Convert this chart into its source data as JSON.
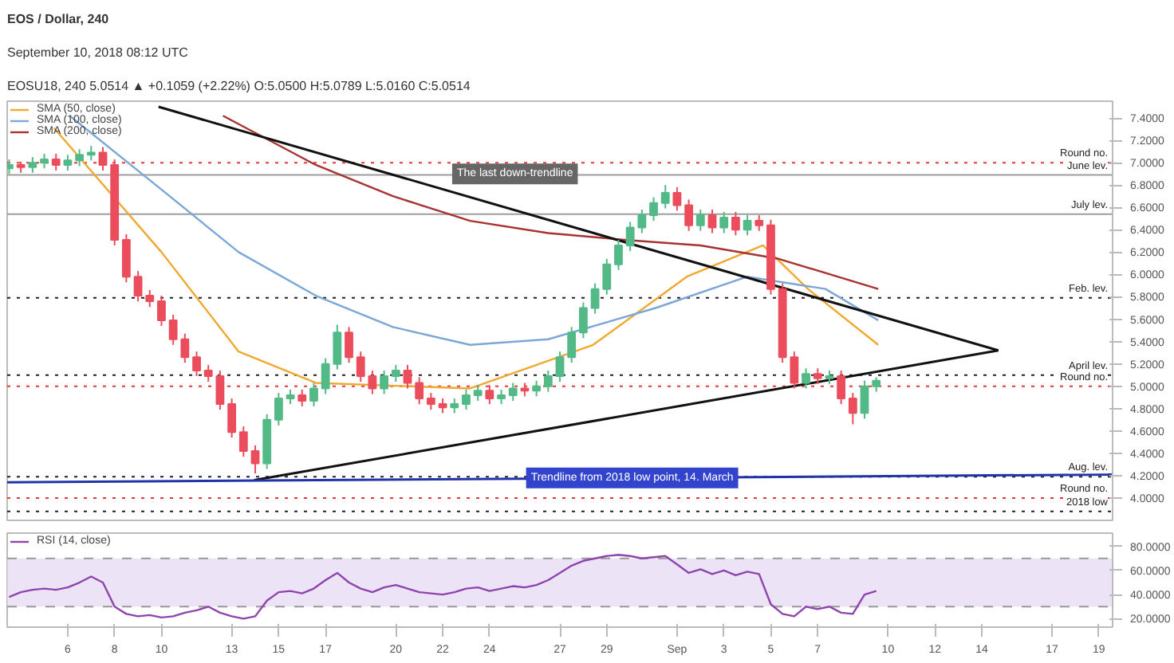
{
  "chart_data": [
    {
      "type": "candlestick",
      "title": "EOS / Dollar, 240",
      "subtitle": "September 10, 2018 08:12 UTC",
      "annotations": [
        "EOSU18, 240 5.0514 ▲ +0.1059 (+2.22%) O:5.0500 H:5.0789 L:5.0160 C:5.0514",
        {
          "text": "The last down-trendline",
          "x": "2018-08-25T02:00",
          "y": 6.9
        },
        {
          "text": "Trendline from 2018 low point, 14. March",
          "x": "2018-08-30T02:00",
          "y": 4.18
        }
      ],
      "xlim": [
        "2018-08-03T10:00",
        "2018-09-19T14:00"
      ],
      "xticks": [
        "2018-08-06",
        "2018-08-08",
        "2018-08-10",
        "2018-08-13",
        "2018-08-15",
        "2018-08-17",
        "2018-08-20",
        "2018-08-22",
        "2018-08-24",
        "2018-08-27",
        "2018-08-29",
        "2018-09-01",
        "2018-09-03",
        "2018-09-05",
        "2018-09-07",
        "2018-09-10",
        "2018-09-12",
        "2018-09-14",
        "2018-09-17",
        "2018-09-19"
      ],
      "ylim": [
        3.8,
        7.55
      ],
      "yticks": [
        {
          "value": 4.0,
          "label": "4.0000"
        },
        {
          "value": 4.2,
          "label": "4.2000"
        },
        {
          "value": 4.4,
          "label": "4.4000"
        },
        {
          "value": 4.6,
          "label": "4.6000"
        },
        {
          "value": 4.8,
          "label": "4.8000"
        },
        {
          "value": 5.0,
          "label": "5.0000"
        },
        {
          "value": 5.2,
          "label": "5.2000"
        },
        {
          "value": 5.4,
          "label": "5.4000"
        },
        {
          "value": 5.6,
          "label": "5.6000"
        },
        {
          "value": 5.8,
          "label": "5.8000"
        },
        {
          "value": 6.0,
          "label": "6.0000"
        },
        {
          "value": 6.2,
          "label": "6.2000"
        },
        {
          "value": 6.4,
          "label": "6.4000"
        },
        {
          "value": 6.6,
          "label": "6.6000"
        },
        {
          "value": 6.8,
          "label": "6.8000"
        },
        {
          "value": 7.0,
          "label": "7.0000"
        },
        {
          "value": 7.2,
          "label": "7.2000"
        },
        {
          "value": 7.4,
          "label": "7.4000"
        }
      ],
      "tick_labels": "y",
      "legend": "top left",
      "ref_lines": [
        {
          "axis": "y",
          "value": 7.0,
          "label": "Round no.",
          "color": "#e53935",
          "line_style": "dotted"
        },
        {
          "axis": "y",
          "value": 6.89,
          "label": "June lev.",
          "color": "#9e9e9e",
          "line_style": "solid"
        },
        {
          "axis": "y",
          "value": 6.54,
          "label": "July lev.",
          "color": "#9e9e9e",
          "line_style": "solid"
        },
        {
          "axis": "y",
          "value": 5.79,
          "label": "Feb. lev.",
          "color": "#222222",
          "line_style": "dotted"
        },
        {
          "axis": "y",
          "value": 5.1,
          "label": "April lev.",
          "color": "#222222",
          "line_style": "dotted"
        },
        {
          "axis": "y",
          "value": 5.0,
          "label": "Round no.",
          "color": "#e53935",
          "line_style": "dotted"
        },
        {
          "axis": "y",
          "value": 4.19,
          "label": "Aug. lev.",
          "color": "#222222",
          "line_style": "dotted"
        },
        {
          "axis": "y",
          "value": 4.0,
          "label": "Round no.",
          "color": "#e53935",
          "line_style": "dotted"
        },
        {
          "axis": "y",
          "value": 3.88,
          "label": "2018 low",
          "color": "#222222",
          "line_style": "dotted"
        }
      ],
      "series": [
        {
          "type": "line",
          "name": "SMA (50, close)",
          "color": "#f0a830",
          "x": [
            "2018-08-05T10:00",
            "2018-08-10T00:00",
            "2018-08-13T07:00",
            "2018-08-16T14:00",
            "2018-08-23T04:00",
            "2018-08-28T10:00",
            "2018-09-01T10:00",
            "2018-09-04T16:00",
            "2018-09-06T14:00",
            "2018-09-09T14:00"
          ],
          "values": [
            7.31,
            6.2,
            5.31,
            5.03,
            4.98,
            5.37,
            5.98,
            6.26,
            5.87,
            5.37
          ]
        },
        {
          "type": "line",
          "name": "SMA (100, close)",
          "color": "#7aa7d8",
          "x": [
            "2018-08-06T02:00",
            "2018-08-10T00:00",
            "2018-08-13T07:00",
            "2018-08-16T14:00",
            "2018-08-19T21:00",
            "2018-08-23T04:00",
            "2018-08-26T12:00",
            "2018-08-31T02:00",
            "2018-09-04T00:00",
            "2018-09-07T08:00",
            "2018-09-09T14:00"
          ],
          "values": [
            7.42,
            6.76,
            6.2,
            5.81,
            5.53,
            5.37,
            5.42,
            5.7,
            5.98,
            5.87,
            5.59
          ]
        },
        {
          "type": "line",
          "name": "SMA (200, close)",
          "color": "#a83232",
          "x": [
            "2018-08-12T15:00",
            "2018-08-16T14:00",
            "2018-08-19T21:00",
            "2018-08-23T04:00",
            "2018-08-26T12:00",
            "2018-08-29T18:00",
            "2018-09-02T00:00",
            "2018-09-05T08:00",
            "2018-09-09T14:00"
          ],
          "values": [
            7.42,
            6.98,
            6.7,
            6.48,
            6.37,
            6.31,
            6.26,
            6.14,
            5.87
          ]
        },
        {
          "type": "line",
          "color": "#111111",
          "x": [
            "2018-08-09T21:00",
            "2018-09-14T17:00"
          ],
          "values": [
            7.5,
            5.32
          ]
        },
        {
          "type": "line",
          "color": "#111111",
          "x": [
            "2018-08-13T23:00",
            "2018-09-14T17:00"
          ],
          "values": [
            4.16,
            5.32
          ]
        },
        {
          "type": "line",
          "color": "#2233aa",
          "x": [
            "2018-08-03T10:00",
            "2018-09-19T14:00"
          ],
          "values": [
            4.14,
            4.21
          ]
        },
        {
          "type": "candlestick",
          "x": [
            "2018-08-03T12:00",
            "2018-08-04T00:00",
            "2018-08-04T12:00",
            "2018-08-05T00:00",
            "2018-08-05T12:00",
            "2018-08-06T00:00",
            "2018-08-06T12:00",
            "2018-08-07T00:00",
            "2018-08-07T12:00",
            "2018-08-08T00:00",
            "2018-08-08T12:00",
            "2018-08-09T00:00",
            "2018-08-09T12:00",
            "2018-08-10T00:00",
            "2018-08-10T12:00",
            "2018-08-11T00:00",
            "2018-08-11T12:00",
            "2018-08-12T00:00",
            "2018-08-12T12:00",
            "2018-08-13T00:00",
            "2018-08-13T12:00",
            "2018-08-14T00:00",
            "2018-08-14T12:00",
            "2018-08-15T00:00",
            "2018-08-15T12:00",
            "2018-08-16T00:00",
            "2018-08-16T12:00",
            "2018-08-17T00:00",
            "2018-08-17T12:00",
            "2018-08-18T00:00",
            "2018-08-18T12:00",
            "2018-08-19T00:00",
            "2018-08-19T12:00",
            "2018-08-20T00:00",
            "2018-08-20T12:00",
            "2018-08-21T00:00",
            "2018-08-21T12:00",
            "2018-08-22T00:00",
            "2018-08-22T12:00",
            "2018-08-23T00:00",
            "2018-08-23T12:00",
            "2018-08-24T00:00",
            "2018-08-24T12:00",
            "2018-08-25T00:00",
            "2018-08-25T12:00",
            "2018-08-26T00:00",
            "2018-08-26T12:00",
            "2018-08-27T00:00",
            "2018-08-27T12:00",
            "2018-08-28T00:00",
            "2018-08-28T12:00",
            "2018-08-29T00:00",
            "2018-08-29T12:00",
            "2018-08-30T00:00",
            "2018-08-30T12:00",
            "2018-08-31T00:00",
            "2018-08-31T12:00",
            "2018-09-01T00:00",
            "2018-09-01T12:00",
            "2018-09-02T00:00",
            "2018-09-02T12:00",
            "2018-09-03T00:00",
            "2018-09-03T12:00",
            "2018-09-04T00:00",
            "2018-09-04T12:00",
            "2018-09-05T00:00",
            "2018-09-05T12:00",
            "2018-09-06T00:00",
            "2018-09-06T12:00",
            "2018-09-07T00:00",
            "2018-09-07T12:00",
            "2018-09-08T00:00",
            "2018-09-08T12:00",
            "2018-09-09T00:00",
            "2018-09-09T12:00"
          ],
          "ohlc": [
            [
              6.95,
              7.03,
              6.9,
              6.98
            ],
            [
              6.98,
              7.01,
              6.91,
              6.96
            ],
            [
              6.96,
              7.05,
              6.91,
              7.0
            ],
            [
              7.0,
              7.08,
              6.95,
              7.03
            ],
            [
              7.03,
              7.08,
              6.93,
              6.98
            ],
            [
              6.98,
              7.07,
              6.93,
              7.02
            ],
            [
              7.02,
              7.12,
              6.97,
              7.07
            ],
            [
              7.07,
              7.15,
              7.02,
              7.09
            ],
            [
              7.09,
              7.14,
              6.93,
              6.98
            ],
            [
              6.98,
              7.03,
              6.26,
              6.31
            ],
            [
              6.31,
              6.36,
              5.93,
              5.98
            ],
            [
              5.98,
              6.03,
              5.76,
              5.81
            ],
            [
              5.81,
              5.86,
              5.71,
              5.76
            ],
            [
              5.76,
              5.81,
              5.54,
              5.59
            ],
            [
              5.59,
              5.64,
              5.37,
              5.42
            ],
            [
              5.42,
              5.47,
              5.21,
              5.26
            ],
            [
              5.26,
              5.31,
              5.09,
              5.14
            ],
            [
              5.14,
              5.19,
              5.04,
              5.09
            ],
            [
              5.09,
              5.14,
              4.79,
              4.84
            ],
            [
              4.84,
              4.89,
              4.54,
              4.59
            ],
            [
              4.59,
              4.64,
              4.37,
              4.42
            ],
            [
              4.42,
              4.47,
              4.22,
              4.31
            ],
            [
              4.31,
              4.75,
              4.26,
              4.7
            ],
            [
              4.7,
              4.94,
              4.65,
              4.89
            ],
            [
              4.89,
              4.97,
              4.84,
              4.92
            ],
            [
              4.92,
              4.97,
              4.82,
              4.87
            ],
            [
              4.87,
              5.03,
              4.82,
              4.98
            ],
            [
              4.98,
              5.25,
              4.93,
              5.2
            ],
            [
              5.2,
              5.55,
              5.15,
              5.48
            ],
            [
              5.48,
              5.53,
              5.21,
              5.26
            ],
            [
              5.26,
              5.31,
              5.04,
              5.09
            ],
            [
              5.09,
              5.14,
              4.93,
              4.98
            ],
            [
              4.98,
              5.14,
              4.93,
              5.09
            ],
            [
              5.09,
              5.19,
              5.04,
              5.14
            ],
            [
              5.14,
              5.19,
              4.98,
              5.03
            ],
            [
              5.03,
              5.08,
              4.84,
              4.89
            ],
            [
              4.89,
              4.94,
              4.79,
              4.84
            ],
            [
              4.84,
              4.89,
              4.76,
              4.81
            ],
            [
              4.81,
              4.89,
              4.76,
              4.84
            ],
            [
              4.84,
              4.97,
              4.79,
              4.92
            ],
            [
              4.92,
              5.01,
              4.87,
              4.96
            ],
            [
              4.96,
              5.01,
              4.84,
              4.89
            ],
            [
              4.89,
              4.97,
              4.84,
              4.92
            ],
            [
              4.92,
              5.03,
              4.87,
              4.98
            ],
            [
              4.98,
              5.03,
              4.91,
              4.96
            ],
            [
              4.96,
              5.05,
              4.91,
              5.0
            ],
            [
              5.0,
              5.14,
              4.95,
              5.09
            ],
            [
              5.09,
              5.31,
              5.04,
              5.26
            ],
            [
              5.26,
              5.53,
              5.21,
              5.48
            ],
            [
              5.48,
              5.75,
              5.43,
              5.7
            ],
            [
              5.7,
              5.92,
              5.65,
              5.87
            ],
            [
              5.87,
              6.14,
              5.82,
              6.09
            ],
            [
              6.09,
              6.31,
              6.04,
              6.26
            ],
            [
              6.26,
              6.47,
              6.21,
              6.42
            ],
            [
              6.42,
              6.58,
              6.37,
              6.53
            ],
            [
              6.53,
              6.69,
              6.48,
              6.64
            ],
            [
              6.64,
              6.8,
              6.59,
              6.73
            ],
            [
              6.73,
              6.78,
              6.57,
              6.62
            ],
            [
              6.62,
              6.67,
              6.39,
              6.44
            ],
            [
              6.44,
              6.58,
              6.39,
              6.53
            ],
            [
              6.53,
              6.58,
              6.37,
              6.42
            ],
            [
              6.42,
              6.56,
              6.37,
              6.51
            ],
            [
              6.51,
              6.56,
              6.35,
              6.4
            ],
            [
              6.4,
              6.53,
              6.35,
              6.48
            ],
            [
              6.48,
              6.53,
              6.39,
              6.44
            ],
            [
              6.44,
              6.49,
              5.82,
              5.87
            ],
            [
              5.87,
              5.92,
              5.21,
              5.26
            ],
            [
              5.26,
              5.31,
              4.98,
              5.03
            ],
            [
              5.03,
              5.16,
              4.98,
              5.11
            ],
            [
              5.11,
              5.16,
              5.02,
              5.07
            ],
            [
              5.07,
              5.14,
              5.02,
              5.09
            ],
            [
              5.09,
              5.14,
              4.84,
              4.89
            ],
            [
              4.89,
              4.94,
              4.66,
              4.76
            ],
            [
              4.76,
              5.05,
              4.71,
              5.0
            ],
            [
              5.0,
              5.08,
              4.95,
              5.05
            ]
          ],
          "colors": [
            "#53b987",
            "#eb4d5c",
            "#53b987",
            "#53b987",
            "#eb4d5c",
            "#53b987",
            "#53b987",
            "#53b987",
            "#eb4d5c",
            "#eb4d5c",
            "#eb4d5c",
            "#eb4d5c",
            "#eb4d5c",
            "#eb4d5c",
            "#eb4d5c",
            "#eb4d5c",
            "#eb4d5c",
            "#eb4d5c",
            "#eb4d5c",
            "#eb4d5c",
            "#eb4d5c",
            "#eb4d5c",
            "#53b987",
            "#53b987",
            "#53b987",
            "#eb4d5c",
            "#53b987",
            "#53b987",
            "#53b987",
            "#eb4d5c",
            "#eb4d5c",
            "#eb4d5c",
            "#53b987",
            "#53b987",
            "#eb4d5c",
            "#eb4d5c",
            "#eb4d5c",
            "#eb4d5c",
            "#53b987",
            "#53b987",
            "#53b987",
            "#eb4d5c",
            "#53b987",
            "#53b987",
            "#eb4d5c",
            "#53b987",
            "#53b987",
            "#53b987",
            "#53b987",
            "#53b987",
            "#53b987",
            "#53b987",
            "#53b987",
            "#53b987",
            "#53b987",
            "#53b987",
            "#53b987",
            "#eb4d5c",
            "#eb4d5c",
            "#53b987",
            "#eb4d5c",
            "#53b987",
            "#eb4d5c",
            "#53b987",
            "#eb4d5c",
            "#eb4d5c",
            "#eb4d5c",
            "#eb4d5c",
            "#53b987",
            "#eb4d5c",
            "#53b987",
            "#eb4d5c",
            "#eb4d5c",
            "#53b987",
            "#53b987"
          ]
        }
      ]
    },
    {
      "type": "line",
      "legend": "top left",
      "xlim": [
        "2018-08-03T10:00",
        "2018-09-19T14:00"
      ],
      "xticks": [
        {
          "value": "2018-08-06",
          "label": "6"
        },
        {
          "value": "2018-08-08",
          "label": "8"
        },
        {
          "value": "2018-08-10",
          "label": "10"
        },
        {
          "value": "2018-08-13",
          "label": "13"
        },
        {
          "value": "2018-08-15",
          "label": "15"
        },
        {
          "value": "2018-08-17",
          "label": "17"
        },
        {
          "value": "2018-08-20",
          "label": "20"
        },
        {
          "value": "2018-08-22",
          "label": "22"
        },
        {
          "value": "2018-08-24",
          "label": "24"
        },
        {
          "value": "2018-08-27",
          "label": "27"
        },
        {
          "value": "2018-08-29",
          "label": "29"
        },
        {
          "value": "2018-09-01",
          "label": "Sep"
        },
        {
          "value": "2018-09-03",
          "label": "3"
        },
        {
          "value": "2018-09-05",
          "label": "5"
        },
        {
          "value": "2018-09-07",
          "label": "7"
        },
        {
          "value": "2018-09-10",
          "label": "10"
        },
        {
          "value": "2018-09-12",
          "label": "12"
        },
        {
          "value": "2018-09-14",
          "label": "14"
        },
        {
          "value": "2018-09-17",
          "label": "17"
        },
        {
          "value": "2018-09-19",
          "label": "19"
        }
      ],
      "ylim": [
        13,
        91
      ],
      "yticks": [
        {
          "value": 20,
          "label": "20.0000"
        },
        {
          "value": 40,
          "label": "40.0000"
        },
        {
          "value": 60,
          "label": "60.0000"
        },
        {
          "value": 80,
          "label": "80.0000"
        }
      ],
      "bands": [
        {
          "axis": "y",
          "from": 30,
          "to": 70,
          "color": "#e8dcf5"
        }
      ],
      "ref_lines": [
        {
          "axis": "y",
          "value": 70,
          "color": "#999999",
          "line_style": "dashed"
        },
        {
          "axis": "y",
          "value": 30,
          "color": "#999999",
          "line_style": "dashed"
        }
      ],
      "series": [
        {
          "name": "RSI (14, close)",
          "color": "#8e44ad",
          "x": [
            "2018-08-03T12:00",
            "2018-08-04T00:00",
            "2018-08-04T12:00",
            "2018-08-05T00:00",
            "2018-08-05T12:00",
            "2018-08-06T00:00",
            "2018-08-06T12:00",
            "2018-08-07T00:00",
            "2018-08-07T12:00",
            "2018-08-08T00:00",
            "2018-08-08T12:00",
            "2018-08-09T00:00",
            "2018-08-09T12:00",
            "2018-08-10T00:00",
            "2018-08-10T12:00",
            "2018-08-11T00:00",
            "2018-08-11T12:00",
            "2018-08-12T00:00",
            "2018-08-12T12:00",
            "2018-08-13T00:00",
            "2018-08-13T12:00",
            "2018-08-14T00:00",
            "2018-08-14T12:00",
            "2018-08-15T00:00",
            "2018-08-15T12:00",
            "2018-08-16T00:00",
            "2018-08-16T12:00",
            "2018-08-17T00:00",
            "2018-08-17T12:00",
            "2018-08-18T00:00",
            "2018-08-18T12:00",
            "2018-08-19T00:00",
            "2018-08-19T12:00",
            "2018-08-20T00:00",
            "2018-08-20T12:00",
            "2018-08-21T00:00",
            "2018-08-21T12:00",
            "2018-08-22T00:00",
            "2018-08-22T12:00",
            "2018-08-23T00:00",
            "2018-08-23T12:00",
            "2018-08-24T00:00",
            "2018-08-24T12:00",
            "2018-08-25T00:00",
            "2018-08-25T12:00",
            "2018-08-26T00:00",
            "2018-08-26T12:00",
            "2018-08-27T00:00",
            "2018-08-27T12:00",
            "2018-08-28T00:00",
            "2018-08-28T12:00",
            "2018-08-29T00:00",
            "2018-08-29T12:00",
            "2018-08-30T00:00",
            "2018-08-30T12:00",
            "2018-08-31T00:00",
            "2018-08-31T12:00",
            "2018-09-01T00:00",
            "2018-09-01T12:00",
            "2018-09-02T00:00",
            "2018-09-02T12:00",
            "2018-09-03T00:00",
            "2018-09-03T12:00",
            "2018-09-04T00:00",
            "2018-09-04T12:00",
            "2018-09-05T00:00",
            "2018-09-05T12:00",
            "2018-09-06T00:00",
            "2018-09-06T12:00",
            "2018-09-07T00:00",
            "2018-09-07T12:00",
            "2018-09-08T00:00",
            "2018-09-08T12:00",
            "2018-09-09T00:00",
            "2018-09-09T12:00"
          ],
          "values": [
            38,
            42,
            44,
            45,
            44,
            46,
            50,
            55,
            50,
            30,
            24,
            22,
            23,
            21,
            22,
            25,
            27,
            30,
            25,
            22,
            20,
            22,
            35,
            42,
            43,
            41,
            45,
            52,
            58,
            50,
            45,
            42,
            46,
            48,
            45,
            42,
            41,
            40,
            42,
            45,
            46,
            43,
            45,
            47,
            46,
            48,
            52,
            58,
            64,
            68,
            70,
            72,
            73,
            72,
            70,
            71,
            72,
            65,
            58,
            61,
            57,
            60,
            56,
            59,
            57,
            32,
            24,
            22,
            30,
            28,
            30,
            25,
            24,
            40,
            43
          ]
        }
      ]
    }
  ]
}
